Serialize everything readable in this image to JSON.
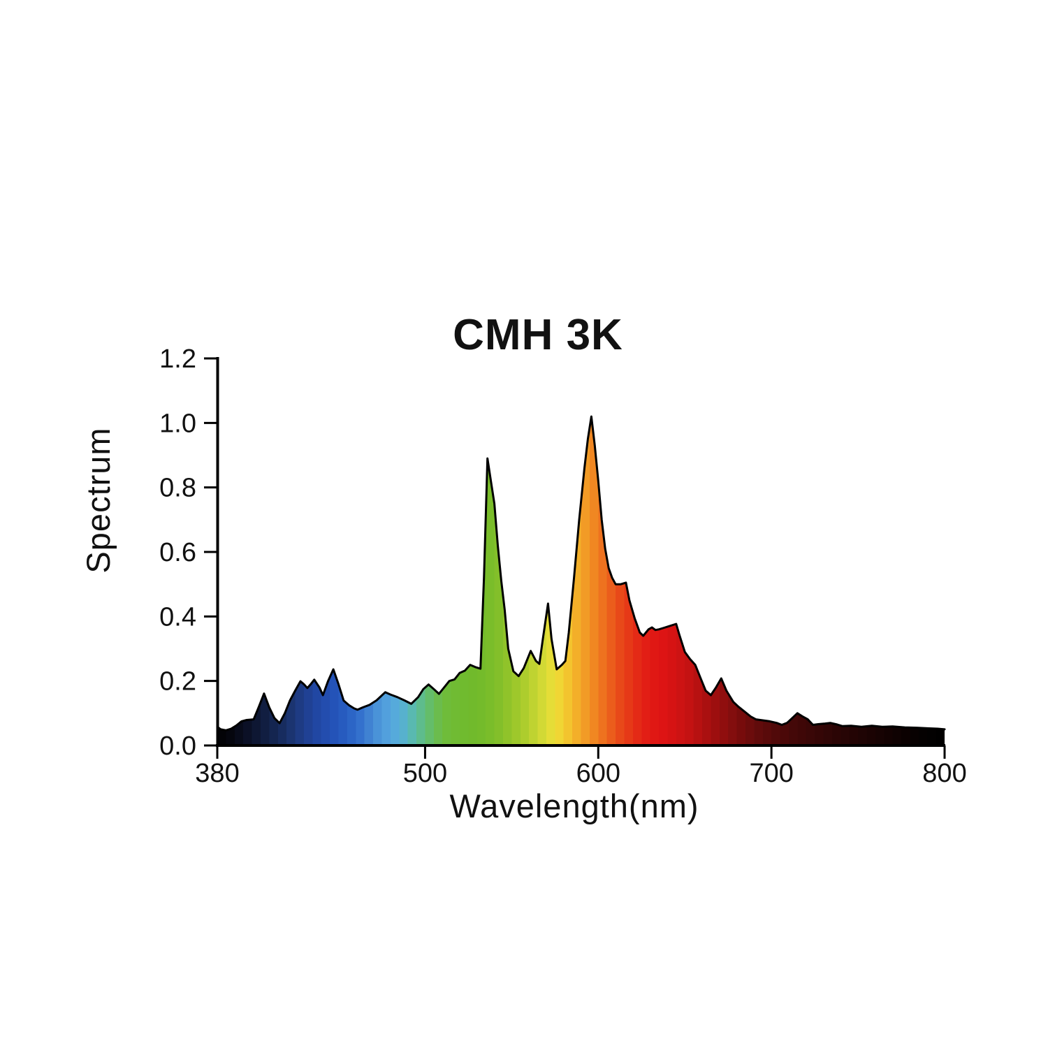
{
  "page": {
    "background": "#ffffff"
  },
  "chart_data": {
    "type": "area",
    "title": "CMH 3K",
    "xlabel": "Wavelength(nm)",
    "ylabel": "Spectrum",
    "xlim": [
      380,
      800
    ],
    "ylim": [
      0,
      1.2
    ],
    "xticks": [
      380,
      500,
      600,
      700,
      800
    ],
    "ytick_labels": [
      "0.0",
      "0.2",
      "0.4",
      "0.6",
      "0.8",
      "1.0",
      "1.2"
    ],
    "grid": false,
    "legend": "none",
    "axis_color": "#000000",
    "outline_color": "#000000",
    "series": [
      {
        "name": "CMH 3K spectrum",
        "points": [
          [
            380,
            0.058
          ],
          [
            382,
            0.05
          ],
          [
            385,
            0.047
          ],
          [
            388,
            0.052
          ],
          [
            391,
            0.062
          ],
          [
            394,
            0.075
          ],
          [
            397,
            0.079
          ],
          [
            401,
            0.081
          ],
          [
            404,
            0.12
          ],
          [
            407,
            0.161
          ],
          [
            410,
            0.118
          ],
          [
            413,
            0.085
          ],
          [
            416,
            0.069
          ],
          [
            419,
            0.1
          ],
          [
            422,
            0.14
          ],
          [
            425,
            0.17
          ],
          [
            428,
            0.199
          ],
          [
            430,
            0.19
          ],
          [
            432,
            0.178
          ],
          [
            434,
            0.19
          ],
          [
            436,
            0.204
          ],
          [
            439,
            0.18
          ],
          [
            441,
            0.156
          ],
          [
            444,
            0.2
          ],
          [
            447,
            0.236
          ],
          [
            450,
            0.19
          ],
          [
            453,
            0.139
          ],
          [
            456,
            0.125
          ],
          [
            459,
            0.115
          ],
          [
            461,
            0.111
          ],
          [
            464,
            0.118
          ],
          [
            468,
            0.126
          ],
          [
            472,
            0.14
          ],
          [
            475,
            0.155
          ],
          [
            477,
            0.165
          ],
          [
            480,
            0.158
          ],
          [
            484,
            0.15
          ],
          [
            488,
            0.14
          ],
          [
            492,
            0.129
          ],
          [
            496,
            0.15
          ],
          [
            499,
            0.175
          ],
          [
            502,
            0.189
          ],
          [
            505,
            0.175
          ],
          [
            508,
            0.16
          ],
          [
            511,
            0.18
          ],
          [
            514,
            0.2
          ],
          [
            517,
            0.205
          ],
          [
            520,
            0.225
          ],
          [
            523,
            0.232
          ],
          [
            526,
            0.25
          ],
          [
            529,
            0.243
          ],
          [
            532,
            0.238
          ],
          [
            534,
            0.52
          ],
          [
            536,
            0.89
          ],
          [
            538,
            0.82
          ],
          [
            540,
            0.75
          ],
          [
            542,
            0.62
          ],
          [
            544,
            0.51
          ],
          [
            546,
            0.42
          ],
          [
            548,
            0.3
          ],
          [
            551,
            0.23
          ],
          [
            554,
            0.215
          ],
          [
            557,
            0.24
          ],
          [
            561,
            0.293
          ],
          [
            564,
            0.262
          ],
          [
            566,
            0.253
          ],
          [
            568,
            0.33
          ],
          [
            571,
            0.44
          ],
          [
            573,
            0.33
          ],
          [
            576,
            0.236
          ],
          [
            579,
            0.25
          ],
          [
            581,
            0.262
          ],
          [
            583,
            0.35
          ],
          [
            586,
            0.52
          ],
          [
            589,
            0.7
          ],
          [
            592,
            0.86
          ],
          [
            594,
            0.95
          ],
          [
            596,
            1.02
          ],
          [
            598,
            0.93
          ],
          [
            600,
            0.82
          ],
          [
            602,
            0.7
          ],
          [
            604,
            0.61
          ],
          [
            606,
            0.55
          ],
          [
            608,
            0.52
          ],
          [
            610,
            0.5
          ],
          [
            613,
            0.5
          ],
          [
            616,
            0.505
          ],
          [
            618,
            0.45
          ],
          [
            621,
            0.395
          ],
          [
            624,
            0.35
          ],
          [
            626,
            0.34
          ],
          [
            629,
            0.36
          ],
          [
            631,
            0.366
          ],
          [
            633,
            0.358
          ],
          [
            635,
            0.36
          ],
          [
            638,
            0.365
          ],
          [
            641,
            0.37
          ],
          [
            645,
            0.377
          ],
          [
            647,
            0.34
          ],
          [
            650,
            0.29
          ],
          [
            653,
            0.268
          ],
          [
            656,
            0.25
          ],
          [
            659,
            0.21
          ],
          [
            662,
            0.17
          ],
          [
            665,
            0.156
          ],
          [
            668,
            0.18
          ],
          [
            671,
            0.208
          ],
          [
            674,
            0.17
          ],
          [
            678,
            0.135
          ],
          [
            681,
            0.12
          ],
          [
            684,
            0.107
          ],
          [
            688,
            0.09
          ],
          [
            691,
            0.081
          ],
          [
            695,
            0.078
          ],
          [
            699,
            0.075
          ],
          [
            703,
            0.07
          ],
          [
            706,
            0.064
          ],
          [
            709,
            0.07
          ],
          [
            712,
            0.085
          ],
          [
            715,
            0.1
          ],
          [
            718,
            0.09
          ],
          [
            721,
            0.081
          ],
          [
            724,
            0.064
          ],
          [
            727,
            0.066
          ],
          [
            731,
            0.068
          ],
          [
            734,
            0.07
          ],
          [
            738,
            0.065
          ],
          [
            741,
            0.06
          ],
          [
            746,
            0.061
          ],
          [
            752,
            0.058
          ],
          [
            758,
            0.061
          ],
          [
            764,
            0.058
          ],
          [
            770,
            0.059
          ],
          [
            777,
            0.056
          ],
          [
            784,
            0.055
          ],
          [
            791,
            0.053
          ],
          [
            796,
            0.052
          ],
          [
            800,
            0.05
          ]
        ]
      }
    ],
    "spectral_gradient_stops": [
      [
        380,
        "#020203"
      ],
      [
        388,
        "#05060f"
      ],
      [
        396,
        "#0a0e22"
      ],
      [
        404,
        "#0f1937"
      ],
      [
        412,
        "#14244e"
      ],
      [
        420,
        "#193066"
      ],
      [
        428,
        "#1e3c85"
      ],
      [
        436,
        "#21459f"
      ],
      [
        444,
        "#234fb2"
      ],
      [
        450,
        "#2456bc"
      ],
      [
        456,
        "#2a61c4"
      ],
      [
        462,
        "#336fcc"
      ],
      [
        468,
        "#4184d3"
      ],
      [
        474,
        "#4d98da"
      ],
      [
        480,
        "#55a6df"
      ],
      [
        486,
        "#57afd6"
      ],
      [
        491,
        "#58b7ba"
      ],
      [
        496,
        "#5cbc98"
      ],
      [
        501,
        "#62bd74"
      ],
      [
        506,
        "#69bc53"
      ],
      [
        512,
        "#6fbc3b"
      ],
      [
        520,
        "#70bb30"
      ],
      [
        528,
        "#71ba2c"
      ],
      [
        536,
        "#77bc2a"
      ],
      [
        544,
        "#86c02a"
      ],
      [
        552,
        "#9cc72b"
      ],
      [
        559,
        "#b2cf2e"
      ],
      [
        565,
        "#c8d633"
      ],
      [
        570,
        "#dcdc36"
      ],
      [
        575,
        "#eedd37"
      ],
      [
        580,
        "#f2cf31"
      ],
      [
        585,
        "#f3b92b"
      ],
      [
        590,
        "#f3a527"
      ],
      [
        595,
        "#f19124"
      ],
      [
        600,
        "#ef7d20"
      ],
      [
        605,
        "#ec671d"
      ],
      [
        610,
        "#e9521a"
      ],
      [
        615,
        "#e74018"
      ],
      [
        621,
        "#e42e16"
      ],
      [
        628,
        "#e21d15"
      ],
      [
        636,
        "#df1414"
      ],
      [
        644,
        "#d41313"
      ],
      [
        652,
        "#c51212"
      ],
      [
        660,
        "#b11111"
      ],
      [
        668,
        "#9c0f0f"
      ],
      [
        676,
        "#870e0e"
      ],
      [
        684,
        "#730c0c"
      ],
      [
        692,
        "#620b0b"
      ],
      [
        701,
        "#530909"
      ],
      [
        711,
        "#460808"
      ],
      [
        721,
        "#3b0707"
      ],
      [
        731,
        "#310606"
      ],
      [
        741,
        "#280505"
      ],
      [
        751,
        "#200404"
      ],
      [
        761,
        "#180303"
      ],
      [
        771,
        "#100202"
      ],
      [
        781,
        "#090101"
      ],
      [
        790,
        "#040101"
      ],
      [
        800,
        "#000000"
      ]
    ]
  }
}
